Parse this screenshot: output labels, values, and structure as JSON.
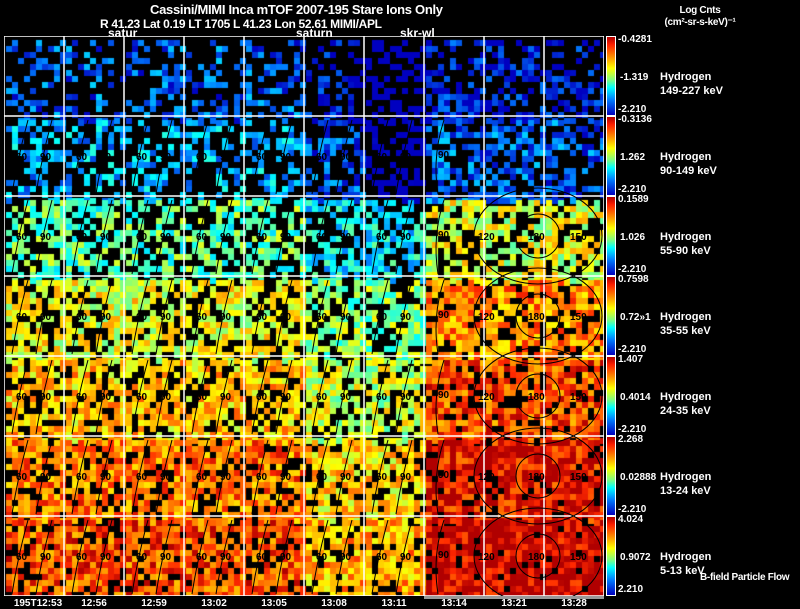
{
  "header": {
    "title": "Cassini/MIMI Inca mTOF  2007-195   Stare   Ions Only",
    "subtitle": "R        41.23 Lat 0.19 LT 1705 L          41.23 Lon          52.61   MIMI/APL",
    "colorbar_title": "Log Cnts",
    "colorbar_unit": "(cm²-sr-s-keV)⁻¹",
    "tags": [
      "satur",
      "saturn",
      "skr-wl"
    ]
  },
  "footer": {
    "bfield_label": "B-field Particle Flow"
  },
  "chart_data": {
    "type": "heatmap",
    "title": "Cassini/MIMI Inca mTOF  2007-195   Stare   Ions Only",
    "colorbar_label": "Log Cnts (cm²-sr-s-keV)⁻¹",
    "columns": [
      "195T12:53",
      "12:56",
      "12:59",
      "13:02",
      "13:05",
      "13:08",
      "13:11",
      "13:14",
      "13:21",
      "13:28"
    ],
    "rows": [
      {
        "species": "Hydrogen",
        "energy": "149-227 keV",
        "cmax": "-0.4281",
        "cmid": "-1.319",
        "cmin": "-2.210",
        "level": 0.15
      },
      {
        "species": "Hydrogen",
        "energy": "90-149 keV",
        "cmax": "-0.3136",
        "cmid": "1.262",
        "cmin": "-2.210",
        "level": 0.25
      },
      {
        "species": "Hydrogen",
        "energy": "55-90 keV",
        "cmax": "0.1589",
        "cmid": "1.026",
        "cmin": "-2.210",
        "level": 0.45
      },
      {
        "species": "Hydrogen",
        "energy": "35-55 keV",
        "cmax": "0.7598",
        "cmid": "0.72»1",
        "cmin": "-2.210",
        "level": 0.62
      },
      {
        "species": "Hydrogen",
        "energy": "24-35 keV",
        "cmax": "1.407",
        "cmid": "0.4014",
        "cmin": "-2.210",
        "level": 0.7
      },
      {
        "species": "Hydrogen",
        "energy": "13-24 keV",
        "cmax": "2.268",
        "cmid": "0.02888",
        "cmin": "-2.210",
        "level": 0.8
      },
      {
        "species": "Hydrogen",
        "energy": "5-13 keV",
        "cmax": "4.024",
        "cmid": "0.9072",
        "cmin": "2.210",
        "level": 0.85
      }
    ],
    "contour_labels": [
      "60",
      "90",
      "120",
      "150",
      "180"
    ]
  }
}
